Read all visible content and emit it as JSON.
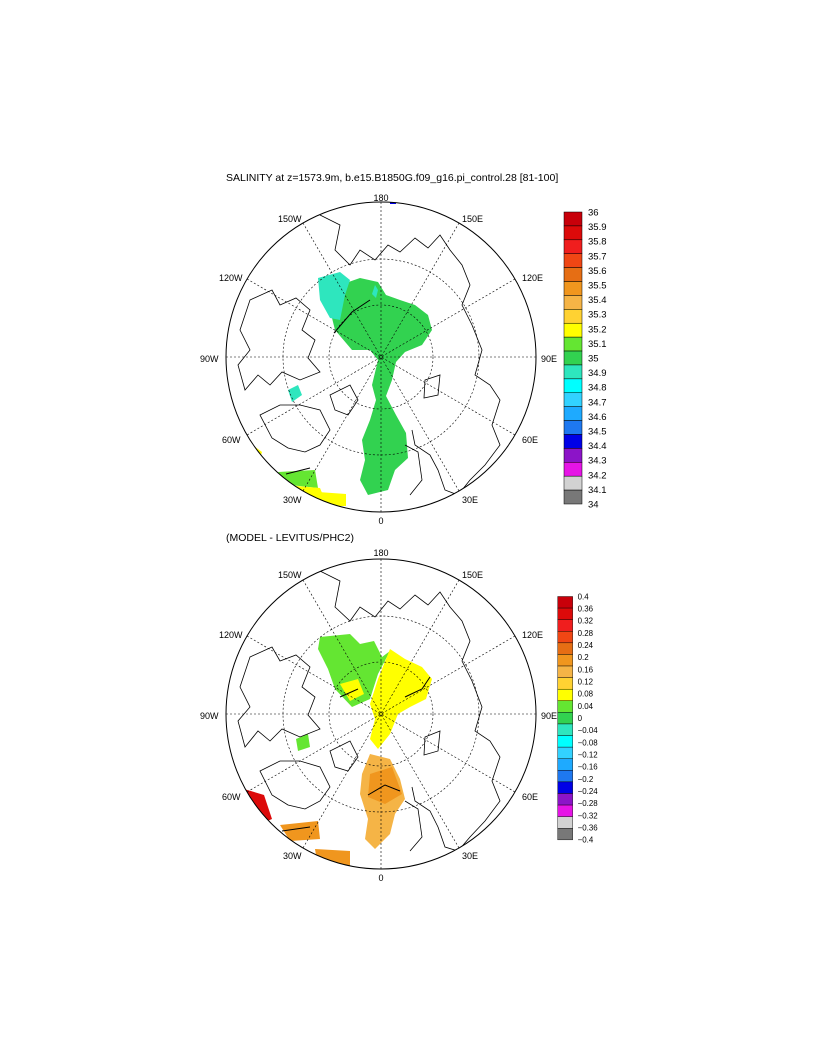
{
  "top_panel": {
    "title": "SALINITY at z=1573.9m, b.e15.B1850G.f09_g16.pi_control.28 [81-100]",
    "lon_labels": {
      "n": "180",
      "s": "0",
      "w": "90W",
      "e": "90E",
      "nw150": "150W",
      "ne150": "150E",
      "nw120": "120W",
      "ne120": "120E",
      "sw60": "60W",
      "se60": "60E",
      "sw30": "30W",
      "se30": "30E"
    },
    "colorbar": {
      "labels": [
        "36",
        "35.9",
        "35.8",
        "35.7",
        "35.6",
        "35.5",
        "35.4",
        "35.3",
        "35.2",
        "35.1",
        "35",
        "34.9",
        "34.8",
        "34.7",
        "34.6",
        "34.5",
        "34.4",
        "34.3",
        "34.2",
        "34.1",
        "34"
      ],
      "colors": [
        "#c8000a",
        "#dc0a0a",
        "#f01e1e",
        "#f04614",
        "#e66e14",
        "#f0961e",
        "#f5b446",
        "#ffd232",
        "#ffff00",
        "#64e632",
        "#32d250",
        "#2ee6be",
        "#00ffff",
        "#32d2ff",
        "#1eaaff",
        "#1e78f0",
        "#0000e6",
        "#8c14c8",
        "#e614e6",
        "#d2d2d2",
        "#787878"
      ]
    }
  },
  "bottom_panel": {
    "title": "(MODEL - LEVITUS/PHC2)",
    "lon_labels": {
      "n": "180",
      "s": "0",
      "w": "90W",
      "e": "90E",
      "nw150": "150W",
      "ne150": "150E",
      "nw120": "120W",
      "ne120": "120E",
      "sw60": "60W",
      "se60": "60E",
      "sw30": "30W",
      "se30": "30E"
    },
    "colorbar": {
      "labels": [
        "0.4",
        "0.36",
        "0.32",
        "0.28",
        "0.24",
        "0.2",
        "0.16",
        "0.12",
        "0.08",
        "0.04",
        "0",
        "−0.04",
        "−0.08",
        "−0.12",
        "−0.16",
        "−0.2",
        "−0.24",
        "−0.28",
        "−0.32",
        "−0.36",
        "−0.4"
      ],
      "colors": [
        "#c8000a",
        "#dc0a0a",
        "#f01e1e",
        "#f04614",
        "#e66e14",
        "#f0961e",
        "#f5b446",
        "#ffd232",
        "#ffff00",
        "#64e632",
        "#32d250",
        "#2ee6be",
        "#00ffff",
        "#32d2ff",
        "#1eaaff",
        "#1e78f0",
        "#0000e6",
        "#8c14c8",
        "#e614e6",
        "#d2d2d2",
        "#787878"
      ]
    }
  },
  "colors": {
    "ocean_green": "#32d250",
    "ocean_cyan": "#2ee6be",
    "yellow": "#ffff00",
    "orange": "#f0961e",
    "lt_orange": "#f5b446",
    "red": "#dc0a0a",
    "land_line": "#000000"
  }
}
